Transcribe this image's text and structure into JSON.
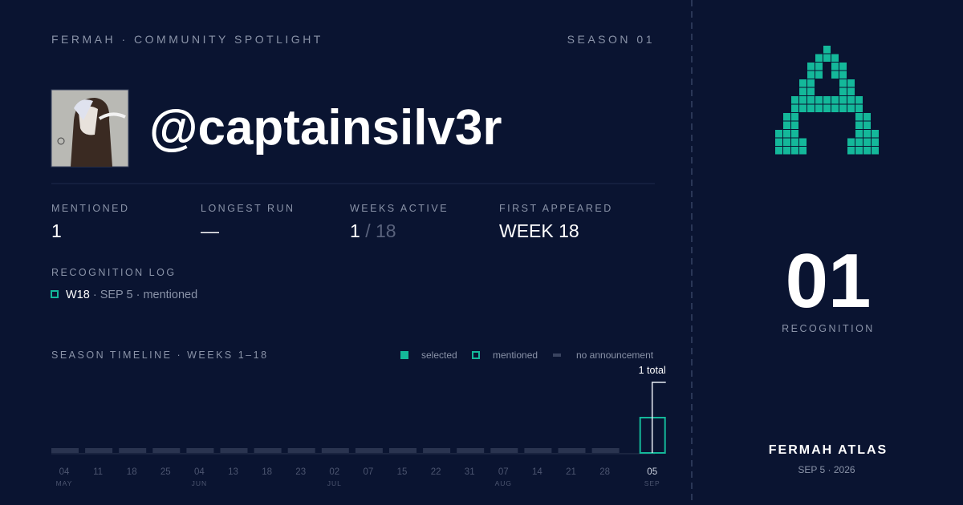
{
  "header": {
    "brand": "FERMAH · COMMUNITY SPOTLIGHT",
    "season": "SEASON 01"
  },
  "profile": {
    "handle": "@captainsilv3r"
  },
  "stats": [
    {
      "label": "MENTIONED",
      "value": "1"
    },
    {
      "label": "LONGEST RUN",
      "value": "—"
    },
    {
      "label": "WEEKS ACTIVE",
      "value": "1",
      "total": "/ 18"
    },
    {
      "label": "FIRST APPEARED",
      "value": "WEEK 18"
    }
  ],
  "log": {
    "title": "RECOGNITION LOG",
    "entries": [
      {
        "week": "W18",
        "details": "· SEP 5 · mentioned"
      }
    ]
  },
  "timeline": {
    "title": "SEASON TIMELINE · WEEKS 1–18",
    "legend": [
      {
        "label": "selected",
        "style": "selected"
      },
      {
        "label": "mentioned",
        "style": "mentioned"
      },
      {
        "label": "no announcement",
        "style": "none"
      }
    ],
    "total_label": "1 total",
    "weeks": [
      {
        "day": "04",
        "month": "MAY",
        "status": "none"
      },
      {
        "day": "11",
        "month": null,
        "status": "none"
      },
      {
        "day": "18",
        "month": null,
        "status": "none"
      },
      {
        "day": "25",
        "month": null,
        "status": "none"
      },
      {
        "day": "04",
        "month": "JUN",
        "status": "none"
      },
      {
        "day": "13",
        "month": null,
        "status": "none"
      },
      {
        "day": "18",
        "month": null,
        "status": "none"
      },
      {
        "day": "23",
        "month": null,
        "status": "none"
      },
      {
        "day": "02",
        "month": "JUL",
        "status": "none"
      },
      {
        "day": "07",
        "month": null,
        "status": "none"
      },
      {
        "day": "15",
        "month": null,
        "status": "none"
      },
      {
        "day": "22",
        "month": null,
        "status": "none"
      },
      {
        "day": "31",
        "month": null,
        "status": "none"
      },
      {
        "day": "07",
        "month": "AUG",
        "status": "none"
      },
      {
        "day": "14",
        "month": null,
        "status": "none"
      },
      {
        "day": "21",
        "month": null,
        "status": "none"
      },
      {
        "day": "28",
        "month": null,
        "status": "none"
      },
      {
        "day": "05",
        "month": "SEP",
        "status": "mentioned"
      }
    ]
  },
  "side": {
    "count": "01",
    "count_label": "RECOGNITION",
    "brand": "FERMAH ATLAS",
    "date": "SEP 5 · 2026"
  }
}
